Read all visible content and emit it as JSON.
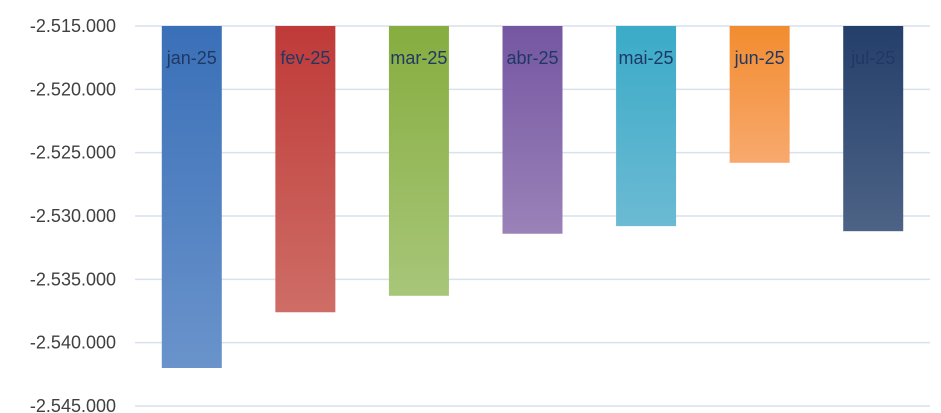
{
  "chart_data": {
    "type": "bar",
    "title": "",
    "xlabel": "",
    "ylabel": "",
    "categories": [
      "jan-25",
      "fev-25",
      "mar-25",
      "abr-25",
      "mai-25",
      "jun-25",
      "jul-25"
    ],
    "values": [
      -2542000,
      -2537600,
      -2536300,
      -2531400,
      -2530800,
      -2525800,
      -2531200
    ],
    "ylim": [
      -2545000,
      -2515000
    ],
    "yticks": [
      -2515000,
      -2520000,
      -2525000,
      -2530000,
      -2535000,
      -2540000,
      -2545000
    ],
    "ytick_labels": [
      "-2.515.000",
      "-2.520.000",
      "-2.525.000",
      "-2.530.000",
      "-2.535.000",
      "-2.540.000",
      "-2.545.000"
    ],
    "grid": true,
    "legend": "none",
    "colors": [
      [
        "#3A70B8",
        "#6A93CB"
      ],
      [
        "#BF3A38",
        "#CE6D66"
      ],
      [
        "#86AD3F",
        "#A8C679"
      ],
      [
        "#7556A2",
        "#9A82B8"
      ],
      [
        "#3AABC8",
        "#6CBAD3"
      ],
      [
        "#F28C2F",
        "#F8A96E"
      ],
      [
        "#243F6A",
        "#4D6386"
      ]
    ]
  }
}
